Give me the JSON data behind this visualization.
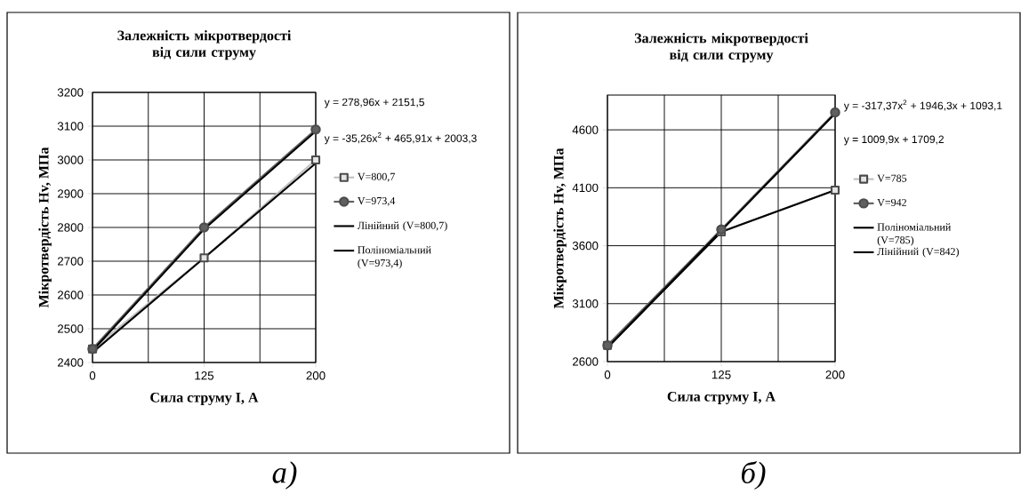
{
  "chart_data": [
    {
      "type": "line",
      "title": "Залежність мікротвердості від сили струму",
      "xlabel": "Сила струму I, А",
      "ylabel": "Мікротвердість Hv, МПа",
      "categories": [
        "0",
        "125",
        "200"
      ],
      "ylim": [
        2400,
        3200
      ],
      "yticks": [
        2400,
        2500,
        2600,
        2700,
        2800,
        2900,
        3000,
        3100,
        3200
      ],
      "grid": true,
      "legend": "right",
      "series": [
        {
          "name": "V=800,7",
          "color": "#c0c0c0",
          "marker": "square",
          "values": [
            2440,
            2710,
            3000
          ]
        },
        {
          "name": "V=973,4",
          "color": "#606060",
          "marker": "circle",
          "values": [
            2440,
            2800,
            3090
          ]
        },
        {
          "name": "Лінійний  (V=800,7)",
          "color": "#000000",
          "marker": "none",
          "values": [
            2430,
            2710,
            2990
          ]
        },
        {
          "name": "Поліноміальний (V=973,4)",
          "color": "#000000",
          "marker": "none",
          "values": [
            2435,
            2795,
            3085
          ]
        }
      ],
      "annotations": [
        "y = 278,96x + 2151,5",
        "y = -35,26x$^{2}$ + 465,91x + 2003,3",
        "а)"
      ]
    },
    {
      "type": "line",
      "title": "Залежність мікротвердості від сили струму",
      "xlabel": "Сила струму I, А",
      "ylabel": "Мікротвердість Hv, МПа",
      "categories": [
        "0",
        "125",
        "200"
      ],
      "ylim": [
        2600,
        4900
      ],
      "yticks": [
        2600,
        3100,
        3600,
        4100,
        4600
      ],
      "grid": true,
      "legend": "right",
      "series": [
        {
          "name": "V=785",
          "color": "#c0c0c0",
          "marker": "square",
          "values": [
            2740,
            3720,
            4080
          ]
        },
        {
          "name": "V=942",
          "color": "#606060",
          "marker": "circle",
          "values": [
            2740,
            3740,
            4750
          ]
        },
        {
          "name": "Поліноміальний (V=785)",
          "color": "#000000",
          "marker": "none",
          "values": [
            2720,
            3720,
            4080
          ]
        },
        {
          "name": "Лінійний  (V=842)",
          "color": "#000000",
          "marker": "none",
          "values": [
            2720,
            3730,
            4740
          ]
        }
      ],
      "annotations": [
        "y = -317,37x$^{2}$ + 1946,3x + 1093,1",
        "y = 1009,9x + 1709,2",
        "б)"
      ]
    }
  ]
}
